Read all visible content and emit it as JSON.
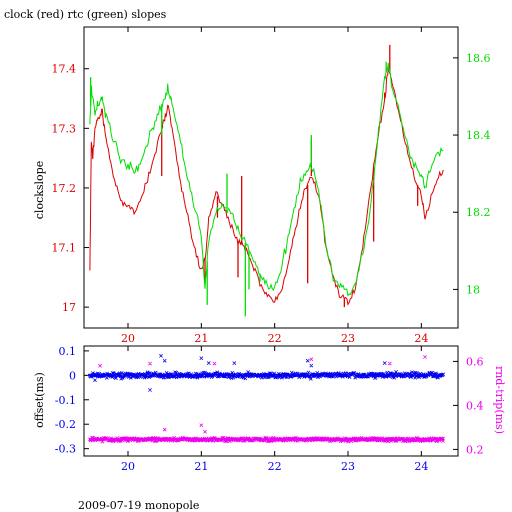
{
  "title": "clock (red) rtc (green) slopes",
  "footer": "2009-07-19 monopole",
  "colors": {
    "red": "#dd0000",
    "green": "#00dd00",
    "blue": "#0000ee",
    "magenta": "#ee00ee",
    "axis": "#000000"
  },
  "chart_data": [
    {
      "type": "line",
      "ylabel": "clockslope",
      "y2label": "",
      "xlim": [
        19.4,
        24.5
      ],
      "ylim": [
        16.965,
        17.47
      ],
      "y2lim": [
        17.9,
        18.68
      ],
      "xticks": [
        20,
        21,
        22,
        23,
        24
      ],
      "xticklabels": [
        "20",
        "21",
        "22",
        "23",
        "24"
      ],
      "yticks": [
        17,
        17.1,
        17.2,
        17.3,
        17.4
      ],
      "yticklabels": [
        "17",
        "17.1",
        "17.2",
        "17.3",
        "17.4"
      ],
      "y2ticks": [
        18,
        18.2,
        18.4,
        18.6
      ],
      "y2ticklabels": [
        "18",
        "18.2",
        "18.4",
        "18.6"
      ],
      "series": [
        {
          "color": "red",
          "axis": "left",
          "points": [
            [
              19.48,
              17.06
            ],
            [
              19.5,
              17.28
            ],
            [
              19.52,
              17.25
            ],
            [
              19.55,
              17.3
            ],
            [
              19.6,
              17.32
            ],
            [
              19.65,
              17.33
            ],
            [
              19.7,
              17.28
            ],
            [
              19.8,
              17.22
            ],
            [
              19.9,
              17.18
            ],
            [
              20.0,
              17.17
            ],
            [
              20.1,
              17.16
            ],
            [
              20.2,
              17.19
            ],
            [
              20.3,
              17.23
            ],
            [
              20.4,
              17.27
            ],
            [
              20.5,
              17.32
            ],
            [
              20.55,
              17.34
            ],
            [
              20.6,
              17.3
            ],
            [
              20.7,
              17.22
            ],
            [
              20.8,
              17.16
            ],
            [
              20.9,
              17.1
            ],
            [
              21.0,
              17.06
            ],
            [
              21.05,
              17.08
            ],
            [
              21.1,
              17.15
            ],
            [
              21.2,
              17.19
            ],
            [
              21.3,
              17.17
            ],
            [
              21.4,
              17.14
            ],
            [
              21.5,
              17.11
            ],
            [
              21.6,
              17.1
            ],
            [
              21.7,
              17.07
            ],
            [
              21.8,
              17.04
            ],
            [
              21.9,
              17.02
            ],
            [
              22.0,
              17.01
            ],
            [
              22.1,
              17.03
            ],
            [
              22.2,
              17.08
            ],
            [
              22.3,
              17.14
            ],
            [
              22.4,
              17.19
            ],
            [
              22.5,
              17.22
            ],
            [
              22.6,
              17.19
            ],
            [
              22.7,
              17.1
            ],
            [
              22.8,
              17.05
            ],
            [
              22.9,
              17.02
            ],
            [
              23.0,
              17.01
            ],
            [
              23.1,
              17.03
            ],
            [
              23.2,
              17.1
            ],
            [
              23.3,
              17.19
            ],
            [
              23.4,
              17.28
            ],
            [
              23.5,
              17.35
            ],
            [
              23.55,
              17.4
            ],
            [
              23.6,
              17.38
            ],
            [
              23.7,
              17.32
            ],
            [
              23.8,
              17.27
            ],
            [
              23.9,
              17.22
            ],
            [
              24.0,
              17.19
            ],
            [
              24.05,
              17.15
            ],
            [
              24.1,
              17.17
            ],
            [
              24.2,
              17.21
            ],
            [
              24.3,
              17.23
            ]
          ],
          "spikes": [
            [
              19.48,
              17.06
            ],
            [
              20.46,
              17.22
            ],
            [
              20.47,
              17.3
            ],
            [
              21.05,
              17.04
            ],
            [
              21.22,
              17.15
            ],
            [
              21.4,
              17.14
            ],
            [
              21.5,
              17.05
            ],
            [
              21.55,
              17.22
            ],
            [
              22.45,
              17.04
            ],
            [
              22.5,
              17.28
            ],
            [
              22.95,
              17.0
            ],
            [
              23.35,
              17.11
            ],
            [
              23.5,
              17.36
            ],
            [
              23.57,
              17.44
            ],
            [
              23.95,
              17.17
            ],
            [
              24.05,
              17.15
            ]
          ]
        },
        {
          "color": "green",
          "axis": "right",
          "points": [
            [
              19.48,
              18.43
            ],
            [
              19.5,
              18.52
            ],
            [
              19.55,
              18.46
            ],
            [
              19.6,
              18.48
            ],
            [
              19.65,
              18.5
            ],
            [
              19.7,
              18.45
            ],
            [
              19.8,
              18.39
            ],
            [
              19.9,
              18.34
            ],
            [
              20.0,
              18.32
            ],
            [
              20.1,
              18.31
            ],
            [
              20.2,
              18.34
            ],
            [
              20.3,
              18.4
            ],
            [
              20.4,
              18.45
            ],
            [
              20.5,
              18.5
            ],
            [
              20.55,
              18.52
            ],
            [
              20.6,
              18.48
            ],
            [
              20.7,
              18.4
            ],
            [
              20.8,
              18.3
            ],
            [
              20.9,
              18.22
            ],
            [
              21.0,
              18.14
            ],
            [
              21.05,
              18.0
            ],
            [
              21.1,
              18.12
            ],
            [
              21.2,
              18.2
            ],
            [
              21.3,
              18.22
            ],
            [
              21.4,
              18.2
            ],
            [
              21.5,
              18.16
            ],
            [
              21.6,
              18.12
            ],
            [
              21.7,
              18.08
            ],
            [
              21.8,
              18.04
            ],
            [
              21.9,
              18.01
            ],
            [
              22.0,
              18.0
            ],
            [
              22.1,
              18.06
            ],
            [
              22.2,
              18.15
            ],
            [
              22.3,
              18.24
            ],
            [
              22.4,
              18.3
            ],
            [
              22.5,
              18.32
            ],
            [
              22.6,
              18.26
            ],
            [
              22.7,
              18.12
            ],
            [
              22.8,
              18.03
            ],
            [
              22.9,
              18.01
            ],
            [
              23.0,
              17.99
            ],
            [
              23.1,
              18.01
            ],
            [
              23.2,
              18.1
            ],
            [
              23.3,
              18.2
            ],
            [
              23.4,
              18.38
            ],
            [
              23.5,
              18.55
            ],
            [
              23.55,
              18.58
            ],
            [
              23.6,
              18.52
            ],
            [
              23.7,
              18.46
            ],
            [
              23.8,
              18.38
            ],
            [
              23.9,
              18.32
            ],
            [
              24.0,
              18.3
            ],
            [
              24.05,
              18.26
            ],
            [
              24.1,
              18.3
            ],
            [
              24.2,
              18.35
            ],
            [
              24.3,
              18.36
            ]
          ],
          "spikes": [
            [
              19.49,
              18.55
            ],
            [
              20.46,
              18.4
            ],
            [
              21.08,
              17.96
            ],
            [
              21.35,
              18.3
            ],
            [
              21.6,
              17.93
            ],
            [
              21.65,
              18.0
            ],
            [
              21.8,
              18.02
            ],
            [
              22.5,
              18.4
            ],
            [
              23.52,
              18.59
            ]
          ]
        }
      ]
    },
    {
      "type": "scatter",
      "ylabel": "offset(ms)",
      "y2label": "rnd-trip(ms)",
      "xlim": [
        19.4,
        24.5
      ],
      "ylim": [
        -0.33,
        0.12
      ],
      "y2lim": [
        0.17,
        0.67
      ],
      "xticks": [
        20,
        21,
        22,
        23,
        24
      ],
      "xticklabels": [
        "20",
        "21",
        "22",
        "23",
        "24"
      ],
      "yticks": [
        -0.3,
        -0.2,
        -0.1,
        0,
        0.1
      ],
      "yticklabels": [
        "-0.3",
        "-0.2",
        "-0.1",
        "0",
        "0.1"
      ],
      "y2ticks": [
        0.2,
        0.4,
        0.6
      ],
      "y2ticklabels": [
        "0.2",
        "0.4",
        "0.6"
      ],
      "series": [
        {
          "color": "blue",
          "axis": "left",
          "x_range": [
            19.48,
            24.3
          ],
          "center": 0.0,
          "spread": 0.01,
          "outliers": [
            [
              20.3,
              -0.06
            ],
            [
              20.45,
              0.08
            ],
            [
              20.5,
              0.06
            ],
            [
              21.0,
              0.07
            ],
            [
              21.1,
              0.05
            ],
            [
              21.45,
              0.05
            ],
            [
              22.45,
              0.06
            ],
            [
              22.5,
              0.04
            ],
            [
              23.5,
              0.05
            ],
            [
              19.55,
              -0.02
            ]
          ]
        },
        {
          "color": "magenta",
          "axis": "right",
          "x_range": [
            19.48,
            24.3
          ],
          "center": 0.245,
          "spread": 0.007,
          "outliers": [
            [
              19.62,
              0.58
            ],
            [
              20.3,
              0.59
            ],
            [
              21.0,
              0.31
            ],
            [
              21.18,
              0.59
            ],
            [
              22.5,
              0.61
            ],
            [
              23.57,
              0.59
            ],
            [
              24.05,
              0.62
            ],
            [
              20.5,
              0.29
            ],
            [
              21.05,
              0.28
            ]
          ]
        }
      ]
    }
  ]
}
